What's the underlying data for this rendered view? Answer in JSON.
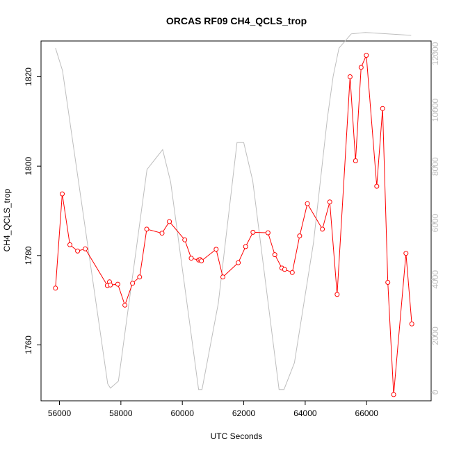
{
  "chart_data": {
    "type": "line",
    "title": "ORCAS RF09 CH4_QCLS_trop",
    "xlabel": "UTC Seconds",
    "ylabel": "CH4_QCLS_trop",
    "xlim": [
      55400,
      68100
    ],
    "ylim": [
      1747.5,
      1828.0
    ],
    "y2lim": [
      -300,
      12450
    ],
    "x_ticks": [
      56000,
      58000,
      60000,
      62000,
      64000,
      66000
    ],
    "y_ticks": [
      1760,
      1780,
      1800,
      1820
    ],
    "y2_ticks": [
      0,
      2000,
      4000,
      6000,
      8000,
      10000,
      12000
    ],
    "grid": false,
    "series": [
      {
        "role": "ch4",
        "axis": "left",
        "color": "#ff0000",
        "marker": "open-circle",
        "points": [
          [
            55870,
            1772.7
          ],
          [
            56090,
            1793.8
          ],
          [
            56340,
            1782.4
          ],
          [
            56590,
            1781.0
          ],
          [
            56840,
            1781.5
          ],
          [
            57560,
            1773.3
          ],
          [
            57630,
            1774.1
          ],
          [
            57660,
            1773.4
          ],
          [
            57900,
            1773.6
          ],
          [
            58130,
            1768.9
          ],
          [
            58380,
            1773.8
          ],
          [
            58610,
            1775.2
          ],
          [
            58840,
            1785.9
          ],
          [
            59340,
            1785.0
          ],
          [
            59580,
            1787.6
          ],
          [
            60080,
            1783.5
          ],
          [
            60290,
            1779.4
          ],
          [
            60530,
            1779.0
          ],
          [
            60580,
            1779.1
          ],
          [
            60620,
            1778.8
          ],
          [
            61100,
            1781.4
          ],
          [
            61320,
            1775.2
          ],
          [
            61820,
            1778.4
          ],
          [
            62060,
            1782.0
          ],
          [
            62300,
            1785.2
          ],
          [
            62790,
            1785.1
          ],
          [
            63010,
            1780.2
          ],
          [
            63240,
            1777.2
          ],
          [
            63330,
            1776.9
          ],
          [
            63580,
            1776.2
          ],
          [
            63820,
            1784.4
          ],
          [
            64070,
            1791.6
          ],
          [
            64560,
            1785.9
          ],
          [
            64800,
            1792.0
          ],
          [
            65040,
            1771.3
          ],
          [
            65460,
            1820.0
          ],
          [
            65640,
            1801.2
          ],
          [
            65820,
            1822.1
          ],
          [
            65990,
            1824.8
          ],
          [
            66330,
            1795.5
          ],
          [
            66520,
            1812.9
          ],
          [
            66690,
            1774.0
          ],
          [
            66880,
            1748.9
          ],
          [
            67280,
            1780.5
          ],
          [
            67470,
            1764.7
          ]
        ]
      },
      {
        "role": "altitude",
        "axis": "right",
        "color": "#bebebe",
        "marker": "none",
        "points": [
          [
            55870,
            12200
          ],
          [
            56100,
            11400
          ],
          [
            57570,
            300
          ],
          [
            57660,
            150
          ],
          [
            57920,
            400
          ],
          [
            58850,
            7900
          ],
          [
            59360,
            8600
          ],
          [
            59620,
            7450
          ],
          [
            60530,
            100
          ],
          [
            60640,
            100
          ],
          [
            61170,
            3150
          ],
          [
            61780,
            8850
          ],
          [
            62000,
            8850
          ],
          [
            62290,
            7500
          ],
          [
            63150,
            100
          ],
          [
            63310,
            100
          ],
          [
            63650,
            1050
          ],
          [
            64270,
            5300
          ],
          [
            64720,
            9700
          ],
          [
            64910,
            11200
          ],
          [
            65100,
            12200
          ],
          [
            65500,
            12700
          ],
          [
            65960,
            12750
          ],
          [
            67450,
            12650
          ]
        ]
      }
    ]
  }
}
